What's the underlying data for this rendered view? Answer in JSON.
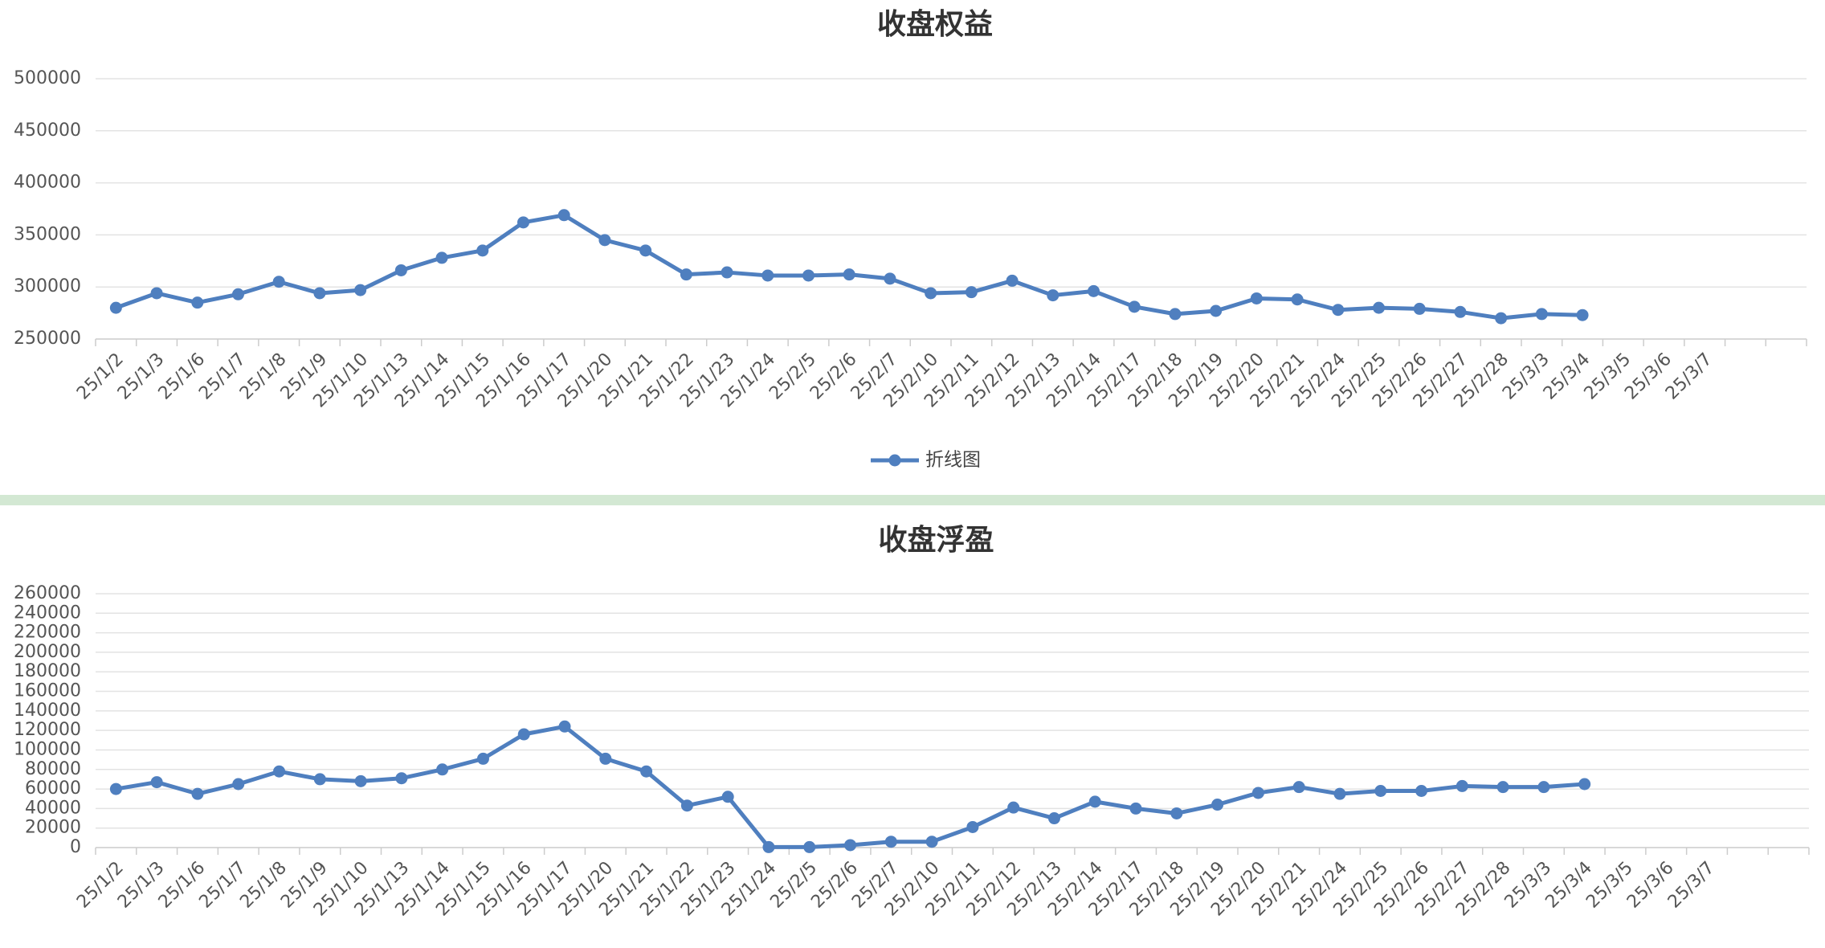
{
  "chart_data": [
    {
      "type": "line",
      "title": "收盘权益",
      "categories": [
        "25/1/2",
        "25/1/3",
        "25/1/6",
        "25/1/7",
        "25/1/8",
        "25/1/9",
        "25/1/10",
        "25/1/13",
        "25/1/14",
        "25/1/15",
        "25/1/16",
        "25/1/17",
        "25/1/20",
        "25/1/21",
        "25/1/22",
        "25/1/23",
        "25/1/24",
        "25/2/5",
        "25/2/6",
        "25/2/7",
        "25/2/10",
        "25/2/11",
        "25/2/12",
        "25/2/13",
        "25/2/14",
        "25/2/17",
        "25/2/18",
        "25/2/19",
        "25/2/20",
        "25/2/21",
        "25/2/24",
        "25/2/25",
        "25/2/26",
        "25/2/27",
        "25/2/28",
        "25/3/3",
        "25/3/4",
        "25/3/5",
        "25/3/6",
        "25/3/7",
        null,
        null
      ],
      "series": [
        {
          "name": "折线图",
          "color": "#4f7fbf",
          "values": [
            280000,
            294000,
            285000,
            293000,
            305000,
            294000,
            297000,
            316000,
            328000,
            335000,
            362000,
            369000,
            345000,
            335000,
            312000,
            314000,
            311000,
            311000,
            312000,
            308000,
            294000,
            295000,
            306000,
            292000,
            296000,
            281000,
            274000,
            277000,
            289000,
            288000,
            278000,
            280000,
            279000,
            276000,
            270000,
            274000,
            273000,
            null,
            null,
            null,
            null,
            null
          ]
        }
      ],
      "ylim": [
        250000,
        500000
      ],
      "yticks": [
        250000,
        300000,
        350000,
        400000,
        450000,
        500000
      ],
      "grid": true,
      "legend": "bottom"
    },
    {
      "type": "line",
      "title": "收盘浮盈",
      "categories": [
        "25/1/2",
        "25/1/3",
        "25/1/6",
        "25/1/7",
        "25/1/8",
        "25/1/9",
        "25/1/10",
        "25/1/13",
        "25/1/14",
        "25/1/15",
        "25/1/16",
        "25/1/17",
        "25/1/20",
        "25/1/21",
        "25/1/22",
        "25/1/23",
        "25/1/24",
        "25/2/5",
        "25/2/6",
        "25/2/7",
        "25/2/10",
        "25/2/11",
        "25/2/12",
        "25/2/13",
        "25/2/14",
        "25/2/17",
        "25/2/18",
        "25/2/19",
        "25/2/20",
        "25/2/21",
        "25/2/24",
        "25/2/25",
        "25/2/26",
        "25/2/27",
        "25/2/28",
        "25/3/3",
        "25/3/4",
        "25/3/5",
        "25/3/6",
        "25/3/7",
        null,
        null
      ],
      "series": [
        {
          "color": "#4f7fbf",
          "values": [
            60000,
            67000,
            55000,
            65000,
            78000,
            70000,
            68000,
            71000,
            80000,
            91000,
            116000,
            124000,
            91000,
            78000,
            43000,
            52000,
            500,
            500,
            2500,
            6000,
            6000,
            21000,
            41000,
            30000,
            47000,
            40000,
            35000,
            44000,
            56000,
            62000,
            55000,
            58000,
            58000,
            63000,
            62000,
            62000,
            65000,
            null,
            null,
            null,
            null,
            null
          ]
        }
      ],
      "ylim": [
        0,
        260000
      ],
      "yticks": [
        0,
        20000,
        40000,
        60000,
        80000,
        100000,
        120000,
        140000,
        160000,
        180000,
        200000,
        220000,
        240000,
        260000
      ],
      "grid": true
    }
  ]
}
